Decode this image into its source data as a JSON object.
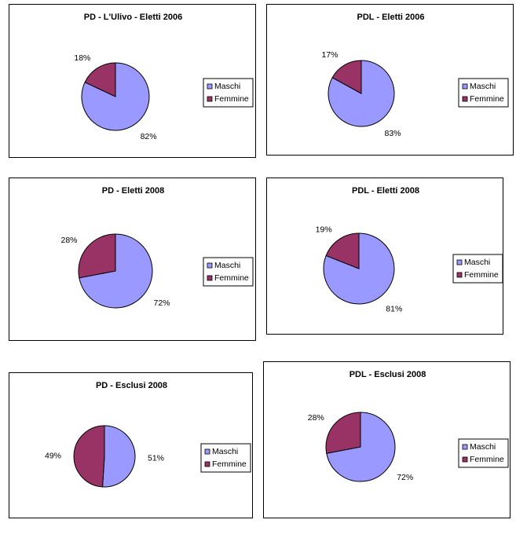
{
  "colors": {
    "maschi": "#9999ff",
    "femmine": "#993366"
  },
  "chart_data": [
    {
      "type": "pie",
      "title": "PD - L'Ulivo - Eletti 2006",
      "slices": [
        {
          "name": "Maschi",
          "value": 82,
          "label": "82%"
        },
        {
          "name": "Femmine",
          "value": 18,
          "label": "18%"
        }
      ],
      "legend": [
        "Maschi",
        "Femmine"
      ],
      "legend_position": "right"
    },
    {
      "type": "pie",
      "title": "PDL - Eletti 2006",
      "slices": [
        {
          "name": "Maschi",
          "value": 83,
          "label": "83%"
        },
        {
          "name": "Femmine",
          "value": 17,
          "label": "17%"
        }
      ],
      "legend": [
        "Maschi",
        "Femmine"
      ],
      "legend_position": "right"
    },
    {
      "type": "pie",
      "title": "PD - Eletti 2008",
      "slices": [
        {
          "name": "Maschi",
          "value": 72,
          "label": "72%"
        },
        {
          "name": "Femmine",
          "value": 28,
          "label": "28%"
        }
      ],
      "legend": [
        "Maschi",
        "Femmine"
      ],
      "legend_position": "right"
    },
    {
      "type": "pie",
      "title": "PDL - Eletti 2008",
      "slices": [
        {
          "name": "Maschi",
          "value": 81,
          "label": "81%"
        },
        {
          "name": "Femmine",
          "value": 19,
          "label": "19%"
        }
      ],
      "legend": [
        "Maschi",
        "Femmine"
      ],
      "legend_position": "right"
    },
    {
      "type": "pie",
      "title": "PD - Esclusi 2008",
      "slices": [
        {
          "name": "Maschi",
          "value": 51,
          "label": "51%"
        },
        {
          "name": "Femmine",
          "value": 49,
          "label": "49%"
        }
      ],
      "legend": [
        "Maschi",
        "Femmine"
      ],
      "legend_position": "right"
    },
    {
      "type": "pie",
      "title": "PDL - Esclusi 2008",
      "slices": [
        {
          "name": "Maschi",
          "value": 72,
          "label": "72%"
        },
        {
          "name": "Femmine",
          "value": 28,
          "label": "28%"
        }
      ],
      "legend": [
        "Maschi",
        "Femmine"
      ],
      "legend_position": "right"
    }
  ]
}
